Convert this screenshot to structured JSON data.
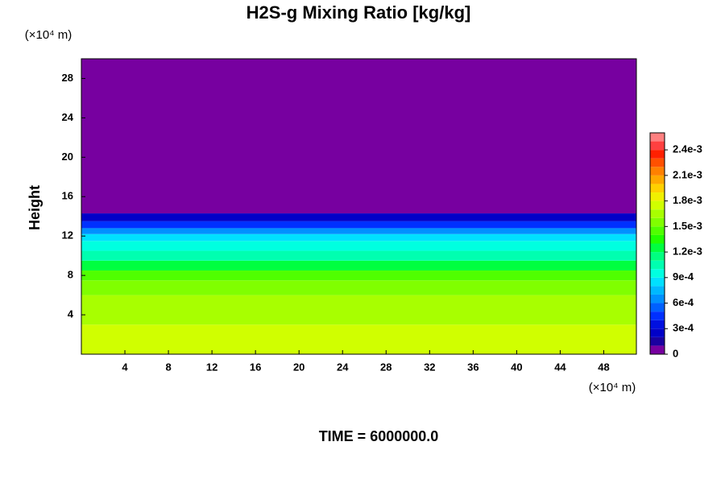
{
  "chart_data": {
    "type": "contour",
    "title": "H2S-g Mixing Ratio [kg/kg]",
    "y_label": "Height",
    "y_unit": "(×10⁴ m)",
    "x_unit": "(×10⁴ m)",
    "footer": "TIME = 6000000.0",
    "xlim": [
      0,
      51
    ],
    "xticks": [
      4,
      8,
      12,
      16,
      20,
      24,
      28,
      32,
      36,
      40,
      44,
      48
    ],
    "ylim": [
      0,
      30
    ],
    "yticks": [
      4,
      8,
      12,
      16,
      20,
      24,
      28
    ],
    "bands": [
      {
        "from": 0,
        "to": 3,
        "value": 0.00175
      },
      {
        "from": 3,
        "to": 6,
        "value": 0.00165
      },
      {
        "from": 6,
        "to": 7.5,
        "value": 0.00155
      },
      {
        "from": 7.5,
        "to": 8.5,
        "value": 0.00145
      },
      {
        "from": 8.5,
        "to": 9.5,
        "value": 0.00125
      },
      {
        "from": 9.5,
        "to": 10.5,
        "value": 0.00105
      },
      {
        "from": 10.5,
        "to": 11.5,
        "value": 0.00095
      },
      {
        "from": 11.5,
        "to": 12.2,
        "value": 0.00085
      },
      {
        "from": 12.2,
        "to": 12.8,
        "value": 0.00065
      },
      {
        "from": 12.8,
        "to": 13.5,
        "value": 0.00045
      },
      {
        "from": 13.5,
        "to": 14.3,
        "value": 0.00025
      },
      {
        "from": 14.3,
        "to": 30,
        "value": 5e-05
      }
    ],
    "colorbar_lim": [
      0,
      0.0026
    ],
    "levels": [
      0,
      0.0001,
      0.0002,
      0.0003,
      0.0004,
      0.0005,
      0.0006,
      0.0007,
      0.0008,
      0.0009,
      0.001,
      0.0011,
      0.0012,
      0.0013,
      0.0014,
      0.0015,
      0.0016,
      0.0017,
      0.0018,
      0.0019,
      0.002,
      0.0021,
      0.0022,
      0.0023,
      0.0024,
      0.0025,
      0.0026
    ],
    "colors": [
      "#7700a0",
      "#1a00a0",
      "#0000c8",
      "#0010e0",
      "#0030ff",
      "#0060ff",
      "#0090ff",
      "#00b8ff",
      "#00e0ff",
      "#00ffe0",
      "#00ffb0",
      "#00ff80",
      "#00ff40",
      "#20ff00",
      "#50ff00",
      "#80ff00",
      "#a8ff00",
      "#d0ff00",
      "#f0f000",
      "#ffd000",
      "#ffa800",
      "#ff8000",
      "#ff5000",
      "#ff2000",
      "#ff4040",
      "#ff8080"
    ],
    "colorbar_ticks": [
      0,
      {
        "value": 0.0003,
        "label": "3e-4"
      },
      {
        "value": 0.0006,
        "label": "6e-4"
      },
      {
        "value": 0.0009,
        "label": "9e-4"
      },
      {
        "value": 0.0012,
        "label": "1.2e-3"
      },
      {
        "value": 0.0015,
        "label": "1.5e-3"
      },
      {
        "value": 0.0018,
        "label": "1.8e-3"
      },
      {
        "value": 0.0021,
        "label": "2.1e-3"
      },
      {
        "value": 0.0024,
        "label": "2.4e-3"
      }
    ]
  }
}
